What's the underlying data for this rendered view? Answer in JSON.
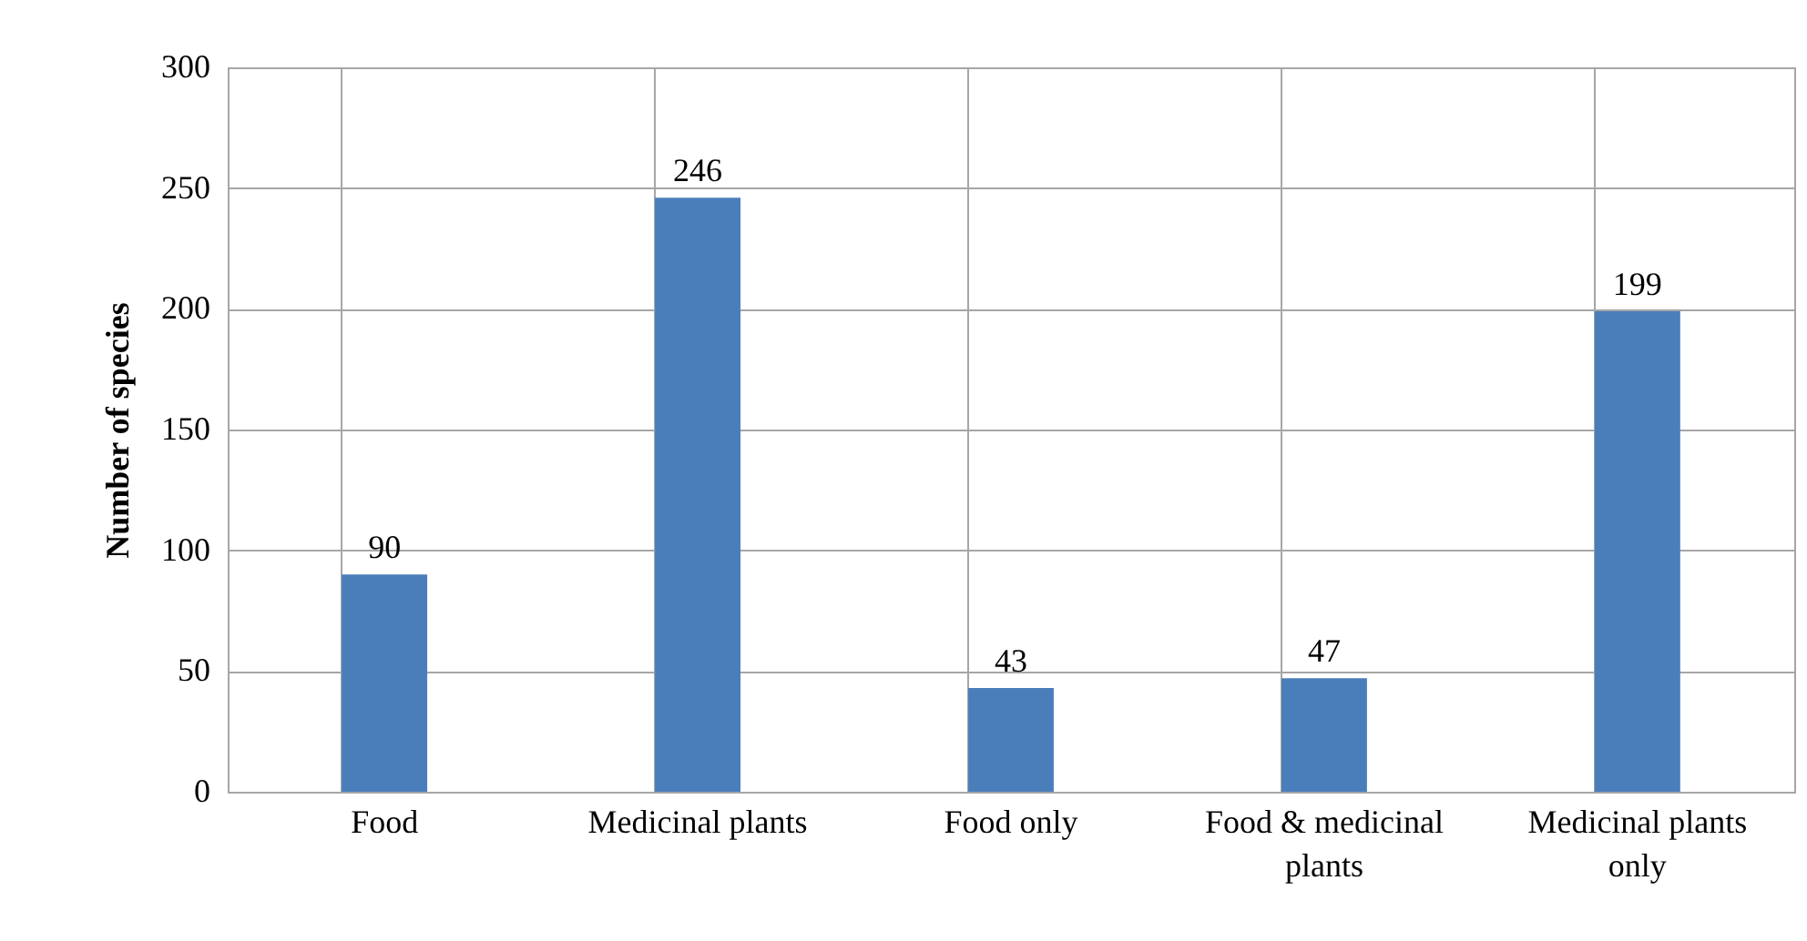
{
  "chart_data": {
    "type": "bar",
    "ylabel": "Number of species",
    "categories": [
      "Food",
      "Medicinal plants",
      "Food only",
      "Food & medicinal plants",
      "Medicinal plants only"
    ],
    "values": [
      90,
      246,
      43,
      47,
      199
    ],
    "color": "#4a7ebb",
    "ylim": [
      0,
      300
    ],
    "yticks": [
      0,
      50,
      100,
      150,
      200,
      250,
      300
    ],
    "grid": true,
    "data_labels": true
  }
}
